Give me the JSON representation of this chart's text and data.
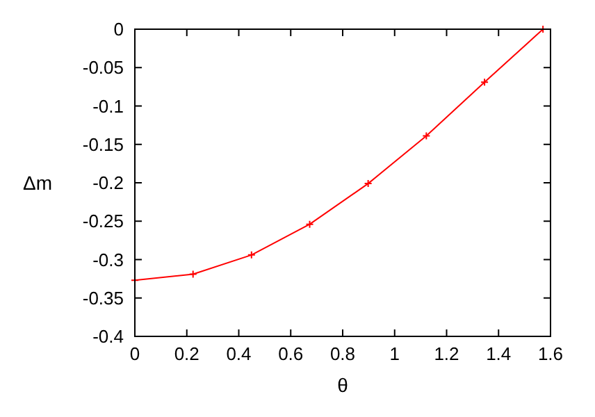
{
  "chart_data": {
    "type": "line",
    "xlabel": "θ",
    "ylabel": "Δm",
    "x": [
      0,
      0.224,
      0.449,
      0.673,
      0.898,
      1.122,
      1.346,
      1.571
    ],
    "series": [
      {
        "color": "#ff0000",
        "values": [
          -0.327,
          -0.319,
          -0.294,
          -0.254,
          -0.201,
          -0.139,
          -0.069,
          0
        ]
      }
    ],
    "xlim": [
      0,
      1.6
    ],
    "xticks": [
      0,
      0.2,
      0.4,
      0.6,
      0.8,
      1,
      1.2,
      1.4,
      1.6
    ],
    "ylim": [
      -0.4,
      0
    ],
    "yticks": [
      -0.4,
      -0.35,
      -0.3,
      -0.25,
      -0.2,
      -0.15,
      -0.1,
      -0.05,
      0
    ],
    "marker": "cross",
    "line_style": "solid",
    "grid": false
  }
}
